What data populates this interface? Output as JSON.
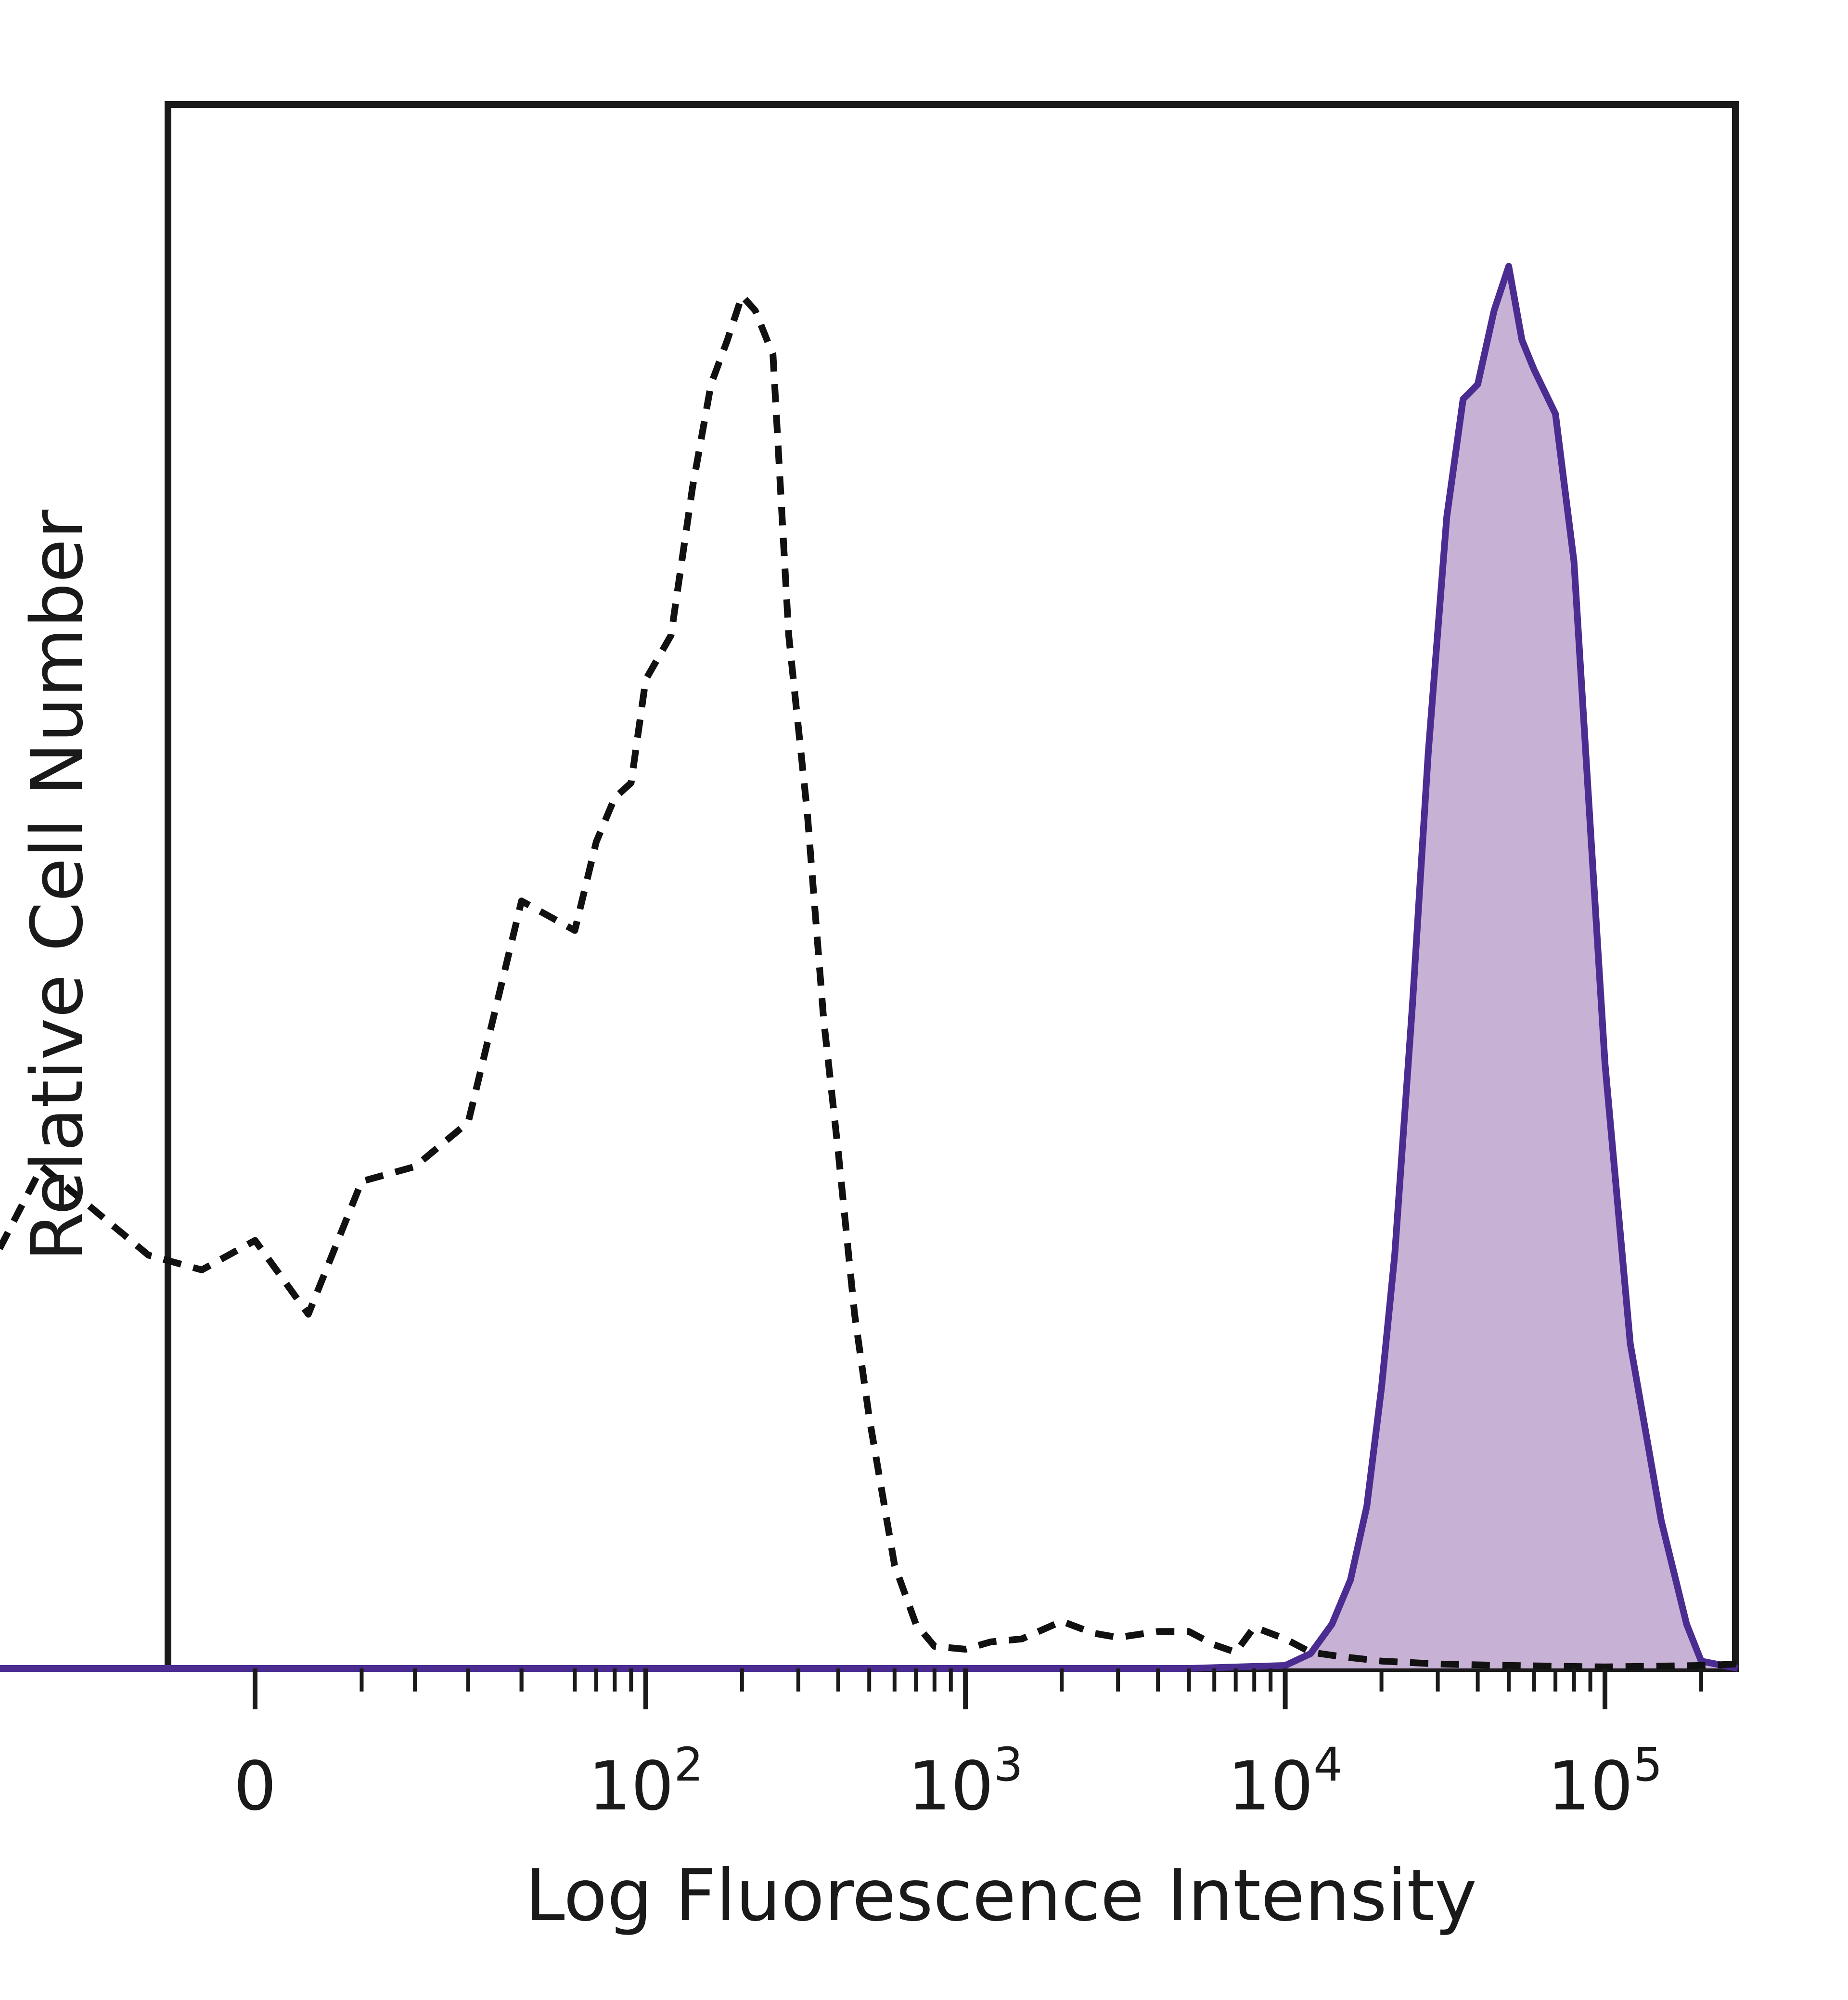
{
  "chart_data": {
    "type": "area",
    "xlabel": "Log Fluorescence Intensity",
    "ylabel": "Relative Cell Number",
    "x_scale": "biexponential",
    "x_ticks": [
      {
        "value": 0,
        "base": "0",
        "exp": ""
      },
      {
        "value": 100,
        "base": "10",
        "exp": "2"
      },
      {
        "value": 1000,
        "base": "10",
        "exp": "3"
      },
      {
        "value": 10000,
        "base": "10",
        "exp": "4"
      },
      {
        "value": 100000,
        "base": "10",
        "exp": "5"
      }
    ],
    "ylim": [
      0,
      100
    ],
    "grid": false,
    "colors": {
      "filled_line": "#4b2c91",
      "filled_area": "#c7b2d6",
      "dashed_line": "#111111"
    },
    "series": [
      {
        "style": "dashed",
        "x": [
          -90,
          -80,
          -70,
          -60,
          -50,
          -40,
          -30,
          -20,
          -10,
          0,
          10,
          20,
          30,
          40,
          50,
          60,
          70,
          80,
          90,
          100,
          120,
          140,
          160,
          180,
          200,
          220,
          250,
          280,
          320,
          360,
          400,
          450,
          500,
          600,
          700,
          800,
          1000,
          1200,
          1500,
          2000,
          2500,
          3000,
          4000,
          5000,
          6000,
          7000,
          8000,
          10000,
          12000,
          15000,
          20000,
          30000,
          50000,
          100000,
          200000,
          260000
        ],
        "y": [
          0,
          52,
          26,
          25,
          27,
          34,
          31,
          28,
          27,
          29,
          24,
          33,
          34,
          37,
          52,
          50,
          56,
          59,
          60,
          67,
          70,
          80,
          87,
          90,
          93,
          92,
          89,
          70,
          58,
          44,
          35,
          24,
          17,
          7,
          3,
          1.5,
          1.3,
          1.8,
          2,
          3.2,
          2.4,
          2.1,
          2.5,
          2.5,
          1.6,
          1.1,
          2.8,
          2,
          1.1,
          0.8,
          0.5,
          0.3,
          0.2,
          0.1,
          0.2,
          0.3
        ]
      },
      {
        "style": "filled",
        "x": [
          -90,
          5000,
          10000,
          12000,
          14000,
          16000,
          18000,
          20000,
          22000,
          25000,
          28000,
          32000,
          36000,
          40000,
          45000,
          50000,
          55000,
          60000,
          70000,
          80000,
          90000,
          100000,
          120000,
          150000,
          180000,
          200000,
          260000
        ],
        "y": [
          0,
          0,
          0.2,
          1,
          3,
          6,
          11,
          19,
          28,
          45,
          62,
          78,
          86,
          87,
          92,
          95,
          90,
          88,
          85,
          75,
          57,
          41,
          22,
          10,
          3,
          0.5,
          0
        ]
      }
    ]
  }
}
